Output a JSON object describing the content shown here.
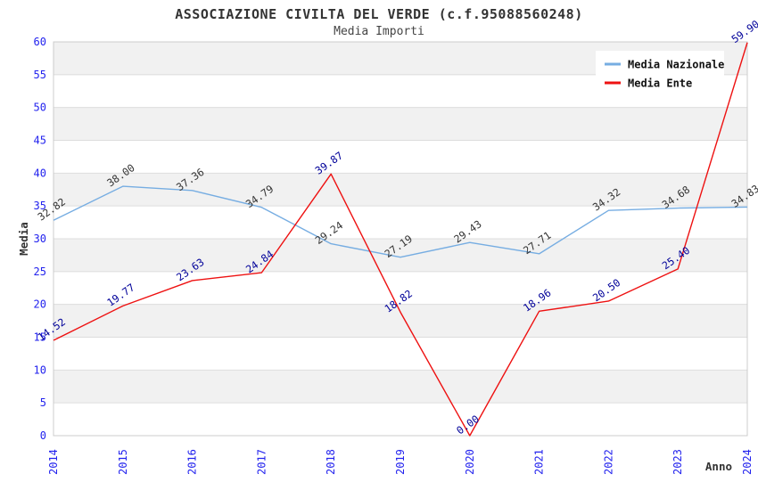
{
  "title": "ASSOCIAZIONE CIVILTA DEL VERDE (c.f.95088560248)",
  "subtitle": "Media Importi",
  "colors": {
    "tick_label_blue": "#2222ee",
    "band_gray": "#f1f1f1",
    "band_white": "#ffffff",
    "gridline": "#dddddd",
    "plot_border": "#cccccc",
    "legend_background": "#ffffff",
    "title_text": "#333333"
  },
  "chart_data": {
    "type": "line",
    "title": "ASSOCIAZIONE CIVILTA DEL VERDE (c.f.95088560248)",
    "subtitle": "Media Importi",
    "xlabel": "Anno",
    "ylabel": "Media",
    "x": [
      2014,
      2015,
      2016,
      2017,
      2018,
      2019,
      2020,
      2021,
      2022,
      2023,
      2024
    ],
    "ylim": [
      0,
      60
    ],
    "ytick_step": 5,
    "yticks": [
      0,
      5,
      10,
      15,
      20,
      25,
      30,
      35,
      40,
      45,
      50,
      55,
      60
    ],
    "grid": "horizontal-bands",
    "legend_position": "top-right",
    "series": [
      {
        "name": "Media Nazionale",
        "color": "#76ade2",
        "label_color": "#333333",
        "values": [
          32.82,
          38.0,
          37.36,
          34.79,
          29.24,
          27.19,
          29.43,
          27.71,
          34.32,
          34.68,
          34.83
        ]
      },
      {
        "name": "Media Ente",
        "color": "#ee1111",
        "label_color": "#000099",
        "values": [
          14.52,
          19.77,
          23.63,
          24.84,
          39.87,
          18.82,
          0.0,
          18.96,
          20.5,
          25.4,
          59.9
        ]
      }
    ]
  }
}
